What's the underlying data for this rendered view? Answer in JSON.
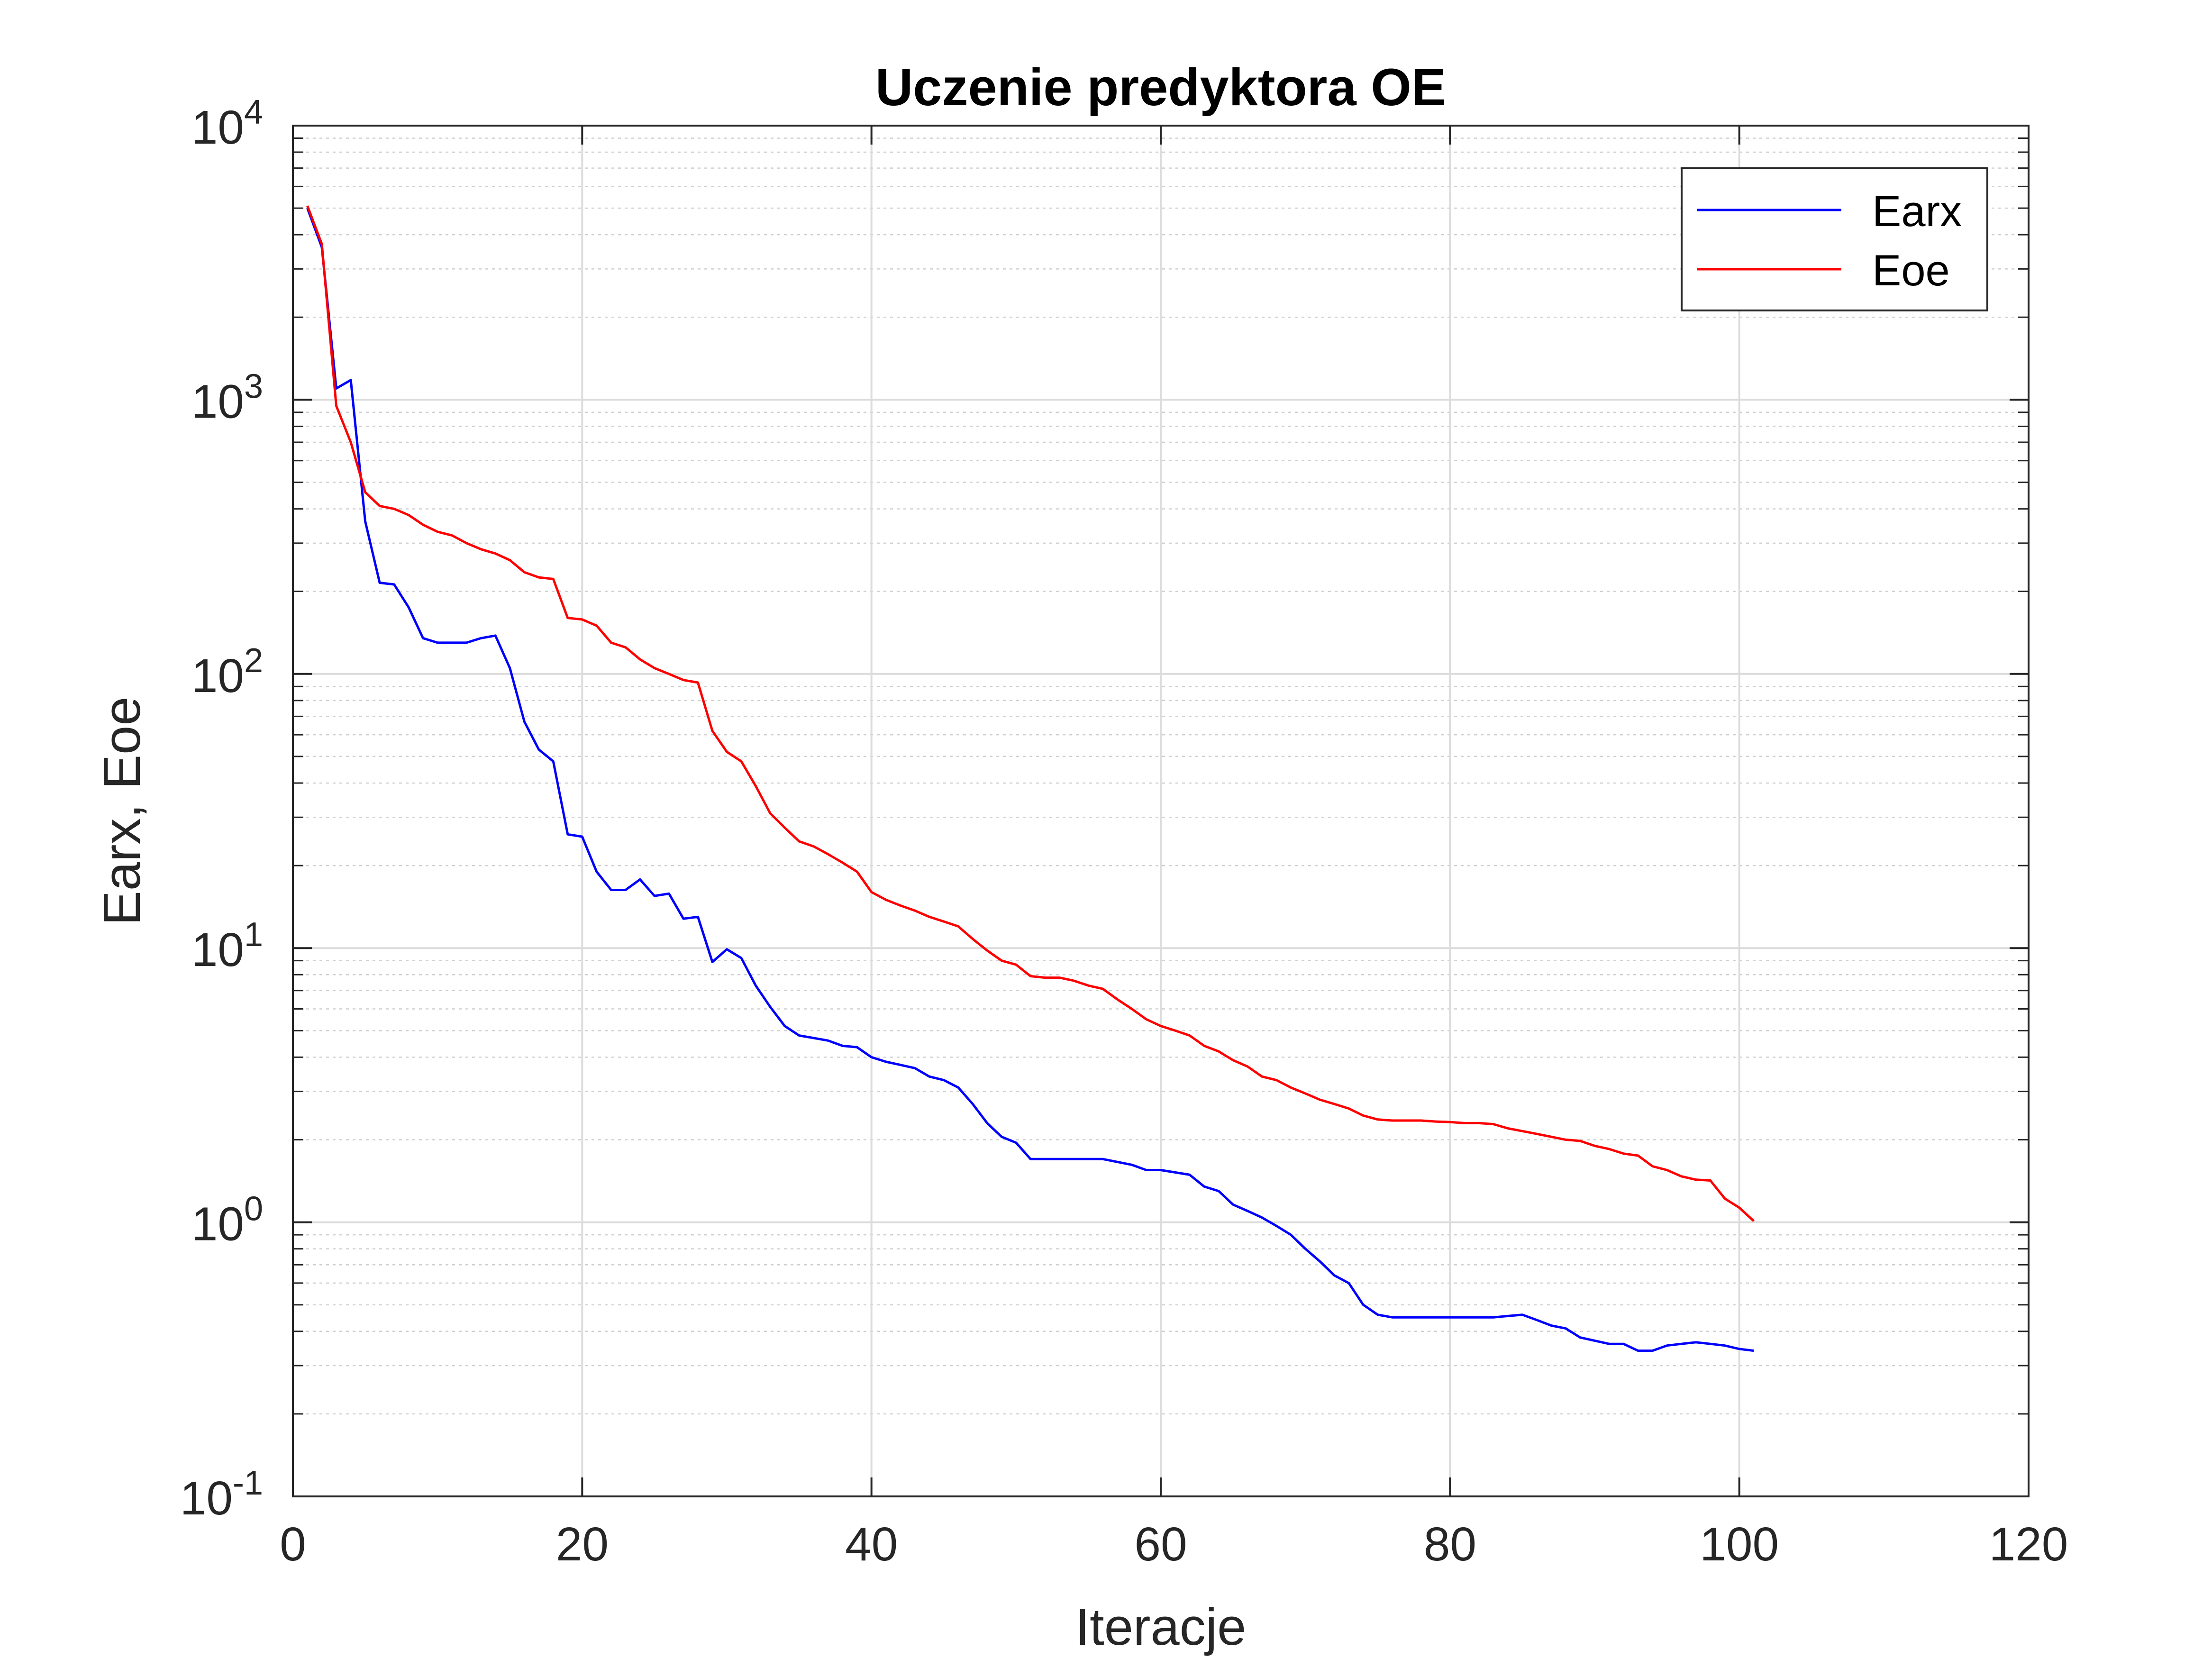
{
  "chart_data": {
    "type": "line",
    "title": "Uczenie predyktora OE",
    "xlabel": "Iteracje",
    "ylabel": "Earx, Eoe",
    "xlim": [
      0,
      120
    ],
    "ylim": [
      0.1,
      10000
    ],
    "yscale": "log",
    "grid": true,
    "minor_grid": true,
    "legend_position": "top-right",
    "x_ticks": [
      0,
      20,
      40,
      60,
      80,
      100,
      120
    ],
    "x_tick_labels": [
      "0",
      "20",
      "40",
      "60",
      "80",
      "100",
      "120"
    ],
    "y_ticks": [
      0.1,
      1,
      10,
      100,
      1000,
      10000
    ],
    "y_tick_labels": [
      {
        "base": "10",
        "exp": "-1"
      },
      {
        "base": "10",
        "exp": "0"
      },
      {
        "base": "10",
        "exp": "1"
      },
      {
        "base": "10",
        "exp": "2"
      },
      {
        "base": "10",
        "exp": "3"
      },
      {
        "base": "10",
        "exp": "4"
      }
    ],
    "x": [
      1,
      2,
      3,
      4,
      5,
      6,
      7,
      8,
      9,
      10,
      11,
      12,
      13,
      14,
      15,
      16,
      17,
      18,
      19,
      20,
      21,
      22,
      23,
      24,
      25,
      26,
      27,
      28,
      29,
      30,
      31,
      32,
      33,
      34,
      35,
      36,
      37,
      38,
      39,
      40,
      41,
      42,
      43,
      44,
      45,
      46,
      47,
      48,
      49,
      50,
      51,
      52,
      53,
      54,
      55,
      56,
      57,
      58,
      59,
      60,
      61,
      62,
      63,
      64,
      65,
      66,
      67,
      68,
      69,
      70,
      71,
      72,
      73,
      74,
      75,
      76,
      77,
      78,
      79,
      80,
      81,
      82,
      83,
      84,
      85,
      86,
      87,
      88,
      89,
      90,
      91,
      92,
      93,
      94,
      95,
      96,
      97,
      98,
      99,
      100,
      101
    ],
    "series": [
      {
        "name": "Earx",
        "color": "#0000ff",
        "values": [
          5000,
          3600,
          1100,
          1180,
          360,
          215,
          212,
          175,
          135,
          130,
          130,
          130,
          135,
          138,
          105,
          67,
          53,
          48,
          26,
          25.5,
          19,
          16.3,
          16.3,
          17.8,
          15.5,
          15.8,
          12.8,
          13,
          8.9,
          9.9,
          9.2,
          7.3,
          6.1,
          5.2,
          4.8,
          4.7,
          4.6,
          4.4,
          4.35,
          4.0,
          3.85,
          3.75,
          3.65,
          3.4,
          3.3,
          3.1,
          2.7,
          2.3,
          2.05,
          1.95,
          1.7,
          1.7,
          1.7,
          1.7,
          1.7,
          1.7,
          1.66,
          1.62,
          1.55,
          1.55,
          1.52,
          1.49,
          1.35,
          1.3,
          1.16,
          1.1,
          1.04,
          0.97,
          0.9,
          0.8,
          0.72,
          0.64,
          0.6,
          0.5,
          0.46,
          0.45,
          0.45,
          0.45,
          0.45,
          0.45,
          0.45,
          0.45,
          0.45,
          0.455,
          0.46,
          0.44,
          0.42,
          0.41,
          0.38,
          0.37,
          0.36,
          0.36,
          0.34,
          0.34,
          0.355,
          0.36,
          0.365,
          0.36,
          0.355,
          0.345,
          0.34
        ]
      },
      {
        "name": "Eoe",
        "color": "#ff0000",
        "values": [
          5100,
          3700,
          950,
          700,
          460,
          410,
          400,
          380,
          350,
          330,
          320,
          300,
          285,
          275,
          260,
          235,
          225,
          222,
          160,
          158,
          150,
          130,
          125,
          113,
          105,
          100,
          95,
          93,
          62,
          52,
          48,
          39,
          31,
          27.5,
          24.5,
          23.5,
          22,
          20.5,
          19,
          16,
          15,
          14.3,
          13.7,
          13,
          12.5,
          12,
          10.8,
          9.8,
          9,
          8.7,
          7.9,
          7.8,
          7.8,
          7.6,
          7.3,
          7.1,
          6.5,
          6.0,
          5.5,
          5.2,
          5.0,
          4.8,
          4.4,
          4.2,
          3.9,
          3.7,
          3.4,
          3.3,
          3.1,
          2.95,
          2.8,
          2.7,
          2.6,
          2.45,
          2.37,
          2.35,
          2.35,
          2.35,
          2.33,
          2.32,
          2.3,
          2.3,
          2.28,
          2.2,
          2.15,
          2.1,
          2.05,
          2.0,
          1.98,
          1.9,
          1.85,
          1.78,
          1.75,
          1.6,
          1.55,
          1.47,
          1.43,
          1.42,
          1.22,
          1.13,
          1.01
        ]
      }
    ]
  }
}
